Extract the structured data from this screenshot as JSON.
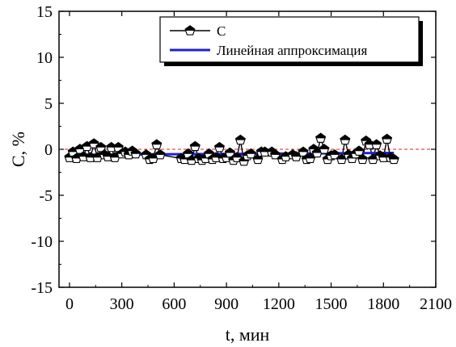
{
  "chart_data": {
    "type": "line",
    "title": "",
    "xlabel": "t, мин",
    "ylabel": "C, %",
    "xlim": [
      -60,
      2100
    ],
    "ylim": [
      -15,
      15
    ],
    "xticks": [
      0,
      300,
      600,
      900,
      1200,
      1500,
      1800,
      2100
    ],
    "yticks": [
      15,
      10,
      5,
      0,
      -5,
      -10,
      -15
    ],
    "xtick_labels": [
      "0",
      "300",
      "600",
      "900",
      "1200",
      "1500",
      "1800",
      "2100"
    ],
    "ytick_labels": [
      "15",
      "10",
      "5",
      "0",
      "-5",
      "-10",
      "-15"
    ],
    "grid": false,
    "legend_position": "top-right",
    "reference_line": {
      "y": 0,
      "color": "#e02020",
      "style": "dashed"
    },
    "series": [
      {
        "name": "C",
        "color": "#000000",
        "marker": "pentagon-half-filled",
        "x": [
          0,
          20,
          40,
          60,
          80,
          100,
          120,
          140,
          160,
          180,
          200,
          220,
          240,
          260,
          280,
          300,
          320,
          340,
          360,
          380,
          440,
          460,
          480,
          500,
          520,
          640,
          660,
          680,
          700,
          720,
          740,
          760,
          780,
          800,
          820,
          840,
          860,
          880,
          900,
          920,
          940,
          960,
          980,
          1000,
          1020,
          1040,
          1080,
          1100,
          1120,
          1160,
          1180,
          1220,
          1240,
          1280,
          1300,
          1340,
          1360,
          1380,
          1400,
          1420,
          1440,
          1460,
          1480,
          1500,
          1520,
          1560,
          1580,
          1600,
          1620,
          1640,
          1660,
          1680,
          1700,
          1720,
          1740,
          1760,
          1780,
          1800,
          1820,
          1840,
          1860
        ],
        "y": [
          -0.9,
          -0.3,
          -1.0,
          0.0,
          -0.8,
          0.3,
          -0.9,
          0.6,
          -0.9,
          0.2,
          -0.6,
          -0.8,
          0.2,
          -0.9,
          0.2,
          -0.5,
          -0.3,
          -0.6,
          -0.2,
          -0.5,
          -0.6,
          -1.1,
          -1.0,
          0.5,
          -0.6,
          -1.0,
          -1.1,
          -0.5,
          -1.2,
          0.3,
          -1.0,
          -1.2,
          -1.0,
          -0.5,
          -1.1,
          -0.9,
          0.2,
          -1.0,
          -0.9,
          -0.4,
          -1.2,
          -0.9,
          1.0,
          -1.3,
          -0.7,
          -0.5,
          -1.1,
          -0.3,
          -0.3,
          -0.3,
          -0.6,
          -1.1,
          -0.8,
          -0.6,
          -0.8,
          -0.3,
          -1.1,
          -1.0,
          0.0,
          -0.4,
          1.2,
          0.0,
          -1.1,
          -0.7,
          -0.6,
          -1.1,
          1.0,
          -0.6,
          -1.0,
          -0.5,
          -0.2,
          -1.1,
          0.9,
          0.5,
          -1.1,
          0.5,
          -0.7,
          -0.9,
          1.1,
          -0.9,
          -1.1
        ]
      },
      {
        "name": "Линейная аппроксимация",
        "color": "#1f1fd6",
        "x": [
          0,
          1860
        ],
        "y": [
          -0.6,
          -0.4
        ]
      }
    ]
  }
}
